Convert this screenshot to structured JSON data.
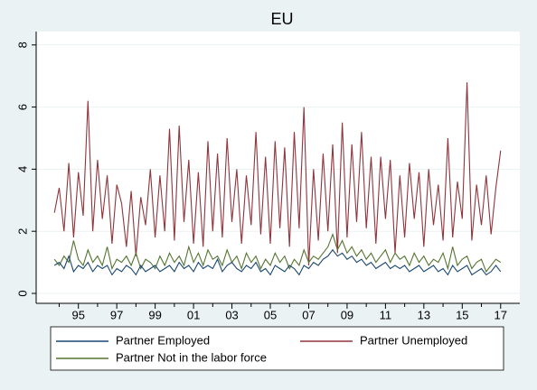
{
  "chart_data": {
    "type": "line",
    "title": "EU",
    "x": [
      1993.75,
      1994,
      1994.25,
      1994.5,
      1994.75,
      1995,
      1995.25,
      1995.5,
      1995.75,
      1996,
      1996.25,
      1996.5,
      1996.75,
      1997,
      1997.25,
      1997.5,
      1997.75,
      1998,
      1998.25,
      1998.5,
      1998.75,
      1999,
      1999.25,
      1999.5,
      1999.75,
      2000,
      2000.25,
      2000.5,
      2000.75,
      2001,
      2001.25,
      2001.5,
      2001.75,
      2002,
      2002.25,
      2002.5,
      2002.75,
      2003,
      2003.25,
      2003.5,
      2003.75,
      2004,
      2004.25,
      2004.5,
      2004.75,
      2005,
      2005.25,
      2005.5,
      2005.75,
      2006,
      2006.25,
      2006.5,
      2006.75,
      2007,
      2007.25,
      2007.5,
      2007.75,
      2008,
      2008.25,
      2008.5,
      2008.75,
      2009,
      2009.25,
      2009.5,
      2009.75,
      2010,
      2010.25,
      2010.5,
      2010.75,
      2011,
      2011.25,
      2011.5,
      2011.75,
      2012,
      2012.25,
      2012.5,
      2012.75,
      2013,
      2013.25,
      2013.5,
      2013.75,
      2014,
      2014.25,
      2014.5,
      2014.75,
      2015,
      2015.25,
      2015.5,
      2015.75,
      2016,
      2016.25,
      2016.5,
      2016.75,
      2017
    ],
    "series": [
      {
        "name": "Partner Employed",
        "color": "#1a476f",
        "values": [
          0.9,
          1.0,
          0.8,
          1.2,
          0.7,
          0.9,
          0.8,
          1.0,
          0.7,
          0.9,
          0.8,
          0.9,
          0.6,
          0.8,
          0.7,
          0.9,
          0.8,
          0.6,
          0.9,
          0.7,
          0.8,
          0.9,
          0.7,
          0.8,
          0.9,
          0.7,
          1.0,
          0.8,
          0.9,
          0.7,
          1.0,
          0.8,
          0.9,
          0.8,
          1.1,
          0.7,
          0.9,
          1.0,
          0.8,
          0.7,
          0.9,
          0.8,
          1.0,
          0.7,
          0.8,
          0.6,
          0.9,
          0.8,
          0.7,
          0.9,
          0.8,
          0.6,
          0.9,
          0.8,
          1.0,
          0.9,
          1.1,
          1.2,
          1.4,
          1.2,
          1.3,
          1.1,
          1.2,
          1.0,
          1.1,
          0.9,
          1.0,
          0.8,
          0.9,
          1.0,
          0.8,
          0.9,
          0.8,
          0.9,
          0.7,
          0.8,
          0.9,
          0.7,
          0.8,
          0.9,
          0.7,
          0.8,
          0.6,
          0.9,
          0.7,
          0.8,
          0.9,
          0.6,
          0.7,
          0.8,
          0.6,
          0.7,
          0.9,
          0.7
        ]
      },
      {
        "name": "Partner Unemployed",
        "color": "#90353b",
        "values": [
          2.6,
          3.4,
          2.0,
          4.2,
          1.8,
          3.9,
          2.5,
          6.2,
          2.0,
          4.3,
          2.4,
          3.8,
          1.6,
          3.5,
          2.9,
          1.5,
          3.3,
          1.2,
          3.1,
          2.2,
          4.0,
          1.8,
          3.8,
          2.0,
          5.3,
          1.7,
          5.4,
          2.3,
          4.3,
          1.6,
          3.9,
          1.5,
          4.9,
          2.0,
          4.5,
          1.8,
          5.0,
          2.3,
          4.0,
          1.6,
          3.8,
          2.2,
          5.2,
          1.9,
          4.4,
          1.6,
          4.9,
          2.1,
          4.7,
          1.5,
          5.2,
          2.1,
          6.0,
          0.9,
          4.0,
          1.7,
          4.5,
          2.0,
          4.8,
          1.3,
          5.5,
          1.8,
          4.8,
          2.3,
          5.2,
          2.1,
          4.4,
          1.6,
          4.4,
          2.4,
          4.3,
          1.3,
          3.8,
          1.8,
          4.2,
          2.4,
          3.9,
          1.5,
          4.0,
          2.2,
          3.5,
          1.7,
          5.0,
          1.8,
          3.6,
          2.4,
          6.8,
          1.7,
          3.5,
          2.2,
          3.8,
          1.9,
          3.4,
          4.6
        ]
      },
      {
        "name": "Partner Not in the labor force",
        "color": "#55752f",
        "values": [
          1.1,
          0.9,
          1.2,
          1.0,
          1.7,
          1.1,
          0.9,
          1.4,
          1.0,
          1.2,
          0.9,
          1.5,
          0.8,
          1.1,
          1.0,
          1.2,
          0.9,
          1.3,
          0.8,
          1.1,
          1.0,
          0.8,
          1.2,
          0.9,
          1.3,
          1.0,
          1.2,
          0.9,
          1.5,
          1.0,
          1.3,
          0.9,
          1.4,
          1.1,
          1.2,
          0.9,
          1.4,
          1.0,
          1.2,
          0.8,
          1.3,
          1.0,
          1.2,
          0.8,
          1.1,
          0.9,
          1.3,
          1.0,
          1.2,
          0.8,
          1.1,
          0.9,
          1.4,
          1.0,
          1.2,
          1.1,
          1.3,
          1.5,
          1.9,
          1.4,
          1.7,
          1.3,
          1.5,
          1.2,
          1.4,
          1.1,
          1.3,
          1.0,
          1.2,
          1.4,
          1.0,
          1.3,
          1.1,
          1.2,
          0.9,
          1.3,
          1.0,
          1.2,
          0.9,
          1.1,
          1.0,
          1.3,
          0.8,
          1.5,
          0.9,
          1.1,
          1.2,
          0.8,
          1.0,
          1.1,
          0.7,
          0.9,
          1.1,
          1.0
        ]
      }
    ],
    "xlim": [
      1992.8,
      2018.0
    ],
    "xticks": [
      {
        "value": 1995,
        "label": "95"
      },
      {
        "value": 1997,
        "label": "97"
      },
      {
        "value": 1999,
        "label": "99"
      },
      {
        "value": 2001,
        "label": "01"
      },
      {
        "value": 2003,
        "label": "03"
      },
      {
        "value": 2005,
        "label": "05"
      },
      {
        "value": 2007,
        "label": "07"
      },
      {
        "value": 2009,
        "label": "09"
      },
      {
        "value": 2011,
        "label": "11"
      },
      {
        "value": 2013,
        "label": "13"
      },
      {
        "value": 2015,
        "label": "15"
      },
      {
        "value": 2017,
        "label": "17"
      }
    ],
    "xminorticks": [
      1994,
      1996,
      1998,
      2000,
      2002,
      2004,
      2006,
      2008,
      2010,
      2012,
      2014,
      2016
    ],
    "ylim": [
      -0.32,
      8.43
    ],
    "yticks": [
      0,
      2,
      4,
      6,
      8
    ],
    "grid": true,
    "legend_position": "bottom"
  }
}
